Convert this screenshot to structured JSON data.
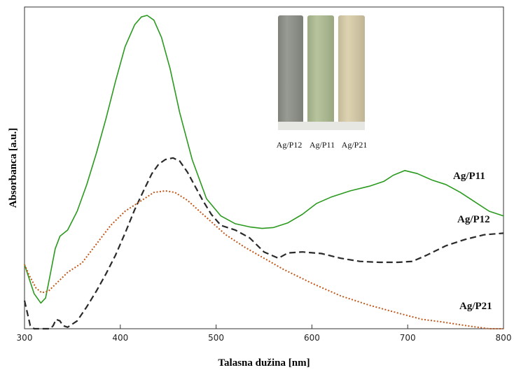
{
  "chart_data": {
    "type": "line",
    "xlabel": "Talasna dužina [nm]",
    "ylabel": "Absorbanca [a.u.]",
    "xlim": [
      300,
      800
    ],
    "ylim": [
      0,
      1
    ],
    "xticks": [
      300,
      400,
      500,
      600,
      700,
      800
    ],
    "grid": false,
    "series": [
      {
        "name": "Ag/P11",
        "color": "#2a9a1e",
        "style": "solid",
        "x": [
          300,
          310,
          317,
          322,
          327,
          332,
          337,
          345,
          355,
          365,
          375,
          385,
          395,
          405,
          415,
          422,
          428,
          435,
          443,
          452,
          462,
          475,
          490,
          505,
          520,
          535,
          548,
          560,
          575,
          590,
          605,
          620,
          640,
          660,
          675,
          685,
          697,
          710,
          725,
          740,
          755,
          770,
          785,
          800
        ],
        "y": [
          0.205,
          0.112,
          0.082,
          0.098,
          0.175,
          0.255,
          0.295,
          0.315,
          0.375,
          0.46,
          0.56,
          0.67,
          0.79,
          0.9,
          0.97,
          0.995,
          1.0,
          0.985,
          0.93,
          0.83,
          0.69,
          0.54,
          0.415,
          0.36,
          0.335,
          0.325,
          0.32,
          0.323,
          0.338,
          0.365,
          0.4,
          0.42,
          0.44,
          0.455,
          0.47,
          0.49,
          0.505,
          0.495,
          0.475,
          0.46,
          0.435,
          0.405,
          0.375,
          0.36
        ]
      },
      {
        "name": "Ag/P12",
        "color": "#2a2a2a",
        "style": "dashed",
        "x": [
          300,
          306,
          310,
          320,
          327,
          330,
          333,
          337,
          340,
          345,
          355,
          365,
          375,
          385,
          395,
          405,
          415,
          425,
          433,
          440,
          447,
          455,
          462,
          470,
          478,
          486,
          495,
          505,
          520,
          535,
          550,
          565,
          575,
          590,
          610,
          630,
          650,
          670,
          690,
          705,
          720,
          740,
          760,
          780,
          800
        ],
        "y": [
          0.09,
          0.01,
          0.0,
          0.0,
          0.0,
          0.01,
          0.03,
          0.025,
          0.01,
          0.005,
          0.025,
          0.07,
          0.12,
          0.175,
          0.235,
          0.305,
          0.38,
          0.445,
          0.495,
          0.525,
          0.54,
          0.545,
          0.535,
          0.5,
          0.455,
          0.41,
          0.365,
          0.33,
          0.315,
          0.29,
          0.245,
          0.225,
          0.242,
          0.245,
          0.24,
          0.225,
          0.215,
          0.212,
          0.212,
          0.215,
          0.235,
          0.265,
          0.285,
          0.3,
          0.305
        ]
      },
      {
        "name": "Ag/P21",
        "color": "#c1571a",
        "style": "dotted",
        "x": [
          300,
          305,
          312,
          318,
          325,
          335,
          345,
          360,
          375,
          390,
          405,
          420,
          435,
          447,
          457,
          470,
          490,
          510,
          530,
          550,
          570,
          600,
          630,
          660,
          690,
          715,
          735,
          750,
          765,
          785,
          800
        ],
        "y": [
          0.205,
          0.17,
          0.13,
          0.115,
          0.12,
          0.15,
          0.18,
          0.21,
          0.27,
          0.33,
          0.375,
          0.405,
          0.435,
          0.44,
          0.435,
          0.41,
          0.355,
          0.3,
          0.26,
          0.225,
          0.19,
          0.145,
          0.105,
          0.075,
          0.05,
          0.03,
          0.022,
          0.015,
          0.008,
          0.0,
          0.0
        ]
      }
    ]
  },
  "labels": {
    "p11": "Ag/P11",
    "p12": "Ag/P12",
    "p21": "Ag/P21"
  },
  "inset": {
    "vials": [
      {
        "label": "Ag/P12",
        "color": "#8d9087"
      },
      {
        "label": "Ag/P11",
        "color": "#aebd92"
      },
      {
        "label": "Ag/P21",
        "color": "#d9cda8"
      }
    ]
  }
}
